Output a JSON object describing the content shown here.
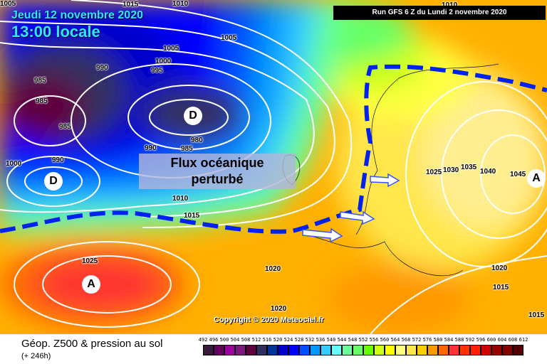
{
  "header": {
    "date": "Jeudi 12 novembre 2020",
    "time": "13:00 locale",
    "run": "Run GFS 6 Z du Lundi 2 novembre 2020"
  },
  "annotation": "Flux océanique perturbé",
  "annotation_lines": [
    "Flux océanique",
    "perturbé"
  ],
  "copyright": "Copyright © 2020 Meteociel.fr",
  "centers": [
    {
      "label": "D",
      "type": "low"
    },
    {
      "label": "D",
      "type": "low"
    },
    {
      "label": "A",
      "type": "high"
    },
    {
      "label": "A",
      "type": "high"
    }
  ],
  "isobar_labels": [
    "1010",
    "1015",
    "1005",
    "990",
    "995",
    "1000",
    "1005",
    "985",
    "985",
    "985",
    "980",
    "990",
    "985",
    "1000",
    "990",
    "1010",
    "1015",
    "1025",
    "1020",
    "1020",
    "1025",
    "1030",
    "1035",
    "1040",
    "1045",
    "1020",
    "1015",
    "1015",
    "1010",
    "1005"
  ],
  "footer": {
    "title": "Géop. Z500 & pression au sol",
    "subtitle": "(+ 246h)"
  },
  "legend": {
    "labels": [
      "492",
      "496",
      "500",
      "504",
      "508",
      "512",
      "516",
      "520",
      "524",
      "528",
      "532",
      "536",
      "540",
      "544",
      "548",
      "552",
      "556",
      "560",
      "564",
      "568",
      "572",
      "576",
      "580",
      "584",
      "588",
      "592",
      "596",
      "600",
      "604",
      "608",
      "612"
    ],
    "colors": [
      "#3a1a3a",
      "#66005f",
      "#a000a0",
      "#801880",
      "#600040",
      "#303060",
      "#003399",
      "#0000cc",
      "#0000ff",
      "#0050ff",
      "#0099ff",
      "#33ccff",
      "#66ffff",
      "#66ff99",
      "#66ff66",
      "#66ff00",
      "#ccff19",
      "#ffff00",
      "#ffff80",
      "#ffe64c",
      "#ffcc00",
      "#ff9900",
      "#ff6600",
      "#ff3333",
      "#ff3300",
      "#ff2000",
      "#cc0000",
      "#990000",
      "#880000",
      "#550000"
    ]
  },
  "colors": {
    "jet_axis": "#0022ee",
    "isobar": "#ffffff",
    "title_text": "#33e6ff"
  }
}
